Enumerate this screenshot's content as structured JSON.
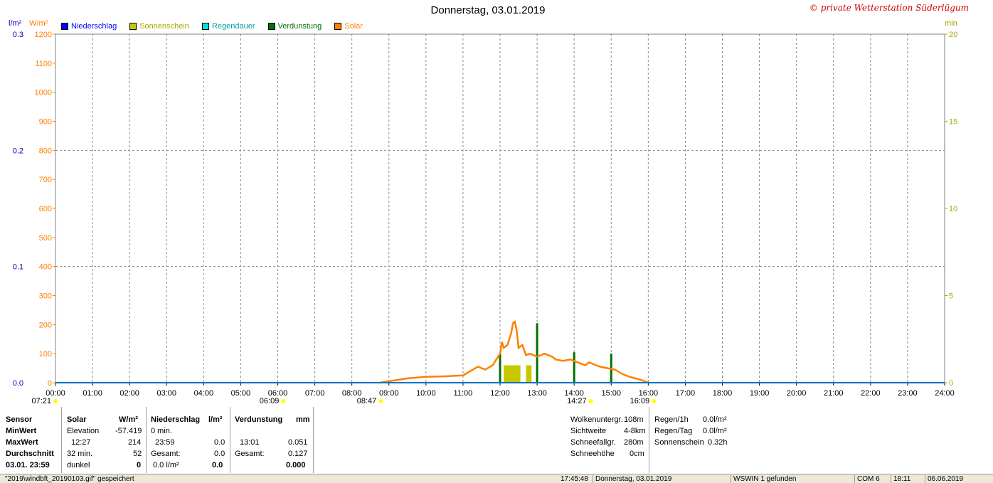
{
  "title": "Donnerstag, 03.01.2019",
  "copyright": "© private Wetterstation Süderlügum",
  "legend": [
    {
      "label": "Niederschlag",
      "color": "#0000ff"
    },
    {
      "label": "Sonnenschein",
      "color": "#c8c800"
    },
    {
      "label": "Regendauer",
      "color": "#00e0e0"
    },
    {
      "label": "Verdunstung",
      "color": "#007000"
    },
    {
      "label": "Solar",
      "color": "#ff8000"
    }
  ],
  "chart_data": {
    "type": "line",
    "title": "Donnerstag, 03.01.2019",
    "y_left_precip_unit": "l/m²",
    "y_left_solar_unit": "W/m²",
    "y_right_unit": "min",
    "y_precip_ticks": [
      "0.0",
      "0.1",
      "0.2",
      "0.3"
    ],
    "y_solar_ticks": [
      "0",
      "100",
      "200",
      "300",
      "400",
      "500",
      "600",
      "700",
      "800",
      "900",
      "1000",
      "1100",
      "1200"
    ],
    "y_right_ticks": [
      "0",
      "5",
      "10",
      "15",
      "20"
    ],
    "x_ticks": [
      "00:00",
      "01:00",
      "02:00",
      "03:00",
      "04:00",
      "05:00",
      "06:00",
      "07:00",
      "08:00",
      "09:00",
      "10:00",
      "11:00",
      "12:00",
      "13:00",
      "14:00",
      "15:00",
      "16:00",
      "17:00",
      "18:00",
      "19:00",
      "20:00",
      "21:00",
      "22:00",
      "23:00",
      "24:00"
    ],
    "solar_ylim": [
      0,
      1200
    ],
    "precip_ylim": [
      0,
      0.3
    ],
    "minutes_ylim": [
      0,
      20
    ],
    "grid": true,
    "series": [
      {
        "name": "Solar",
        "color": "#ff8000",
        "x": [
          8.75,
          9.0,
          9.5,
          10.0,
          10.5,
          11.0,
          11.2,
          11.4,
          11.6,
          11.8,
          12.0,
          12.05,
          12.1,
          12.2,
          12.3,
          12.35,
          12.4,
          12.45,
          12.5,
          12.6,
          12.7,
          12.8,
          12.9,
          13.0,
          13.2,
          13.4,
          13.5,
          13.7,
          13.9,
          14.1,
          14.3,
          14.4,
          14.5,
          14.7,
          14.9,
          15.1,
          15.3,
          15.5,
          15.8,
          16.0
        ],
        "y": [
          0,
          5,
          15,
          20,
          22,
          25,
          40,
          55,
          45,
          60,
          100,
          140,
          120,
          130,
          170,
          205,
          210,
          180,
          120,
          130,
          95,
          100,
          95,
          90,
          100,
          90,
          80,
          75,
          80,
          70,
          60,
          70,
          65,
          55,
          50,
          45,
          30,
          20,
          10,
          0
        ]
      },
      {
        "name": "Niederschlag",
        "color": "#0070c0",
        "x": [
          0,
          24
        ],
        "y": [
          0,
          0
        ]
      }
    ],
    "sunshine_blocks": [
      {
        "from": 12.1,
        "to": 12.55
      },
      {
        "from": 12.7,
        "to": 12.85
      }
    ],
    "evaporation_bars": [
      {
        "x": 12.0,
        "v": 100
      },
      {
        "x": 13.0,
        "v": 205
      },
      {
        "x": 14.0,
        "v": 105
      },
      {
        "x": 15.0,
        "v": 100
      }
    ],
    "markers": [
      {
        "label": "07:21",
        "x": 0.0
      },
      {
        "label": "06:09",
        "x": 6.15
      },
      {
        "label": "08:47",
        "x": 8.78
      },
      {
        "label": "14:27",
        "x": 14.45
      },
      {
        "label": "16:09",
        "x": 16.15
      }
    ]
  },
  "stats": {
    "sensor": {
      "header": "Sensor",
      "min": "MinWert",
      "max": "MaxWert",
      "avg": "Durchschnitt",
      "date": "03.01.  23:59"
    },
    "solar": {
      "header": "Solar",
      "unit": "W/m²",
      "r1a": "Elevation",
      "r1b": "-57.419",
      "r2a": "12:27",
      "r2b": "214",
      "r3a": "32 min.",
      "r3b": "52",
      "r4a": "dunkel",
      "r4b": "0"
    },
    "precip": {
      "header": "Niederschlag",
      "unit": "l/m²",
      "r1a": "0 min.",
      "r2a": "23:59",
      "r2b": "0.0",
      "r3a": "Gesamt:",
      "r3b": "0.0",
      "r4a": "0.0 l/m²",
      "r4b": "0.0"
    },
    "evap": {
      "header": "Verdunstung",
      "unit": "mm",
      "r2a": "13:01",
      "r2b": "0.051",
      "r3a": "Gesamt:",
      "r3b": "0.127",
      "r4b": "0.000"
    },
    "weather": [
      {
        "k": "Wolkenuntergr.",
        "v": "108m"
      },
      {
        "k": "Sichtweite",
        "v": "4-8km"
      },
      {
        "k": "Schneefallgr.",
        "v": "280m"
      },
      {
        "k": "Schneehöhe",
        "v": "0cm"
      }
    ],
    "rain": [
      {
        "k": "Regen/1h",
        "v": "0.0l/m²"
      },
      {
        "k": "Regen/Tag",
        "v": "0.0l/m²"
      },
      {
        "k": "Sonnenschein",
        "v": "0.32h"
      }
    ]
  },
  "statusbar": {
    "file": "\"2019\\windbft_20190103.gif\" gespeichert",
    "time": "17:45:48",
    "date": "Donnerstag, 03.01.2019",
    "wswin": "WSWIN 1 gefunden",
    "com": "COM 6",
    "clock": "18:11",
    "sysdate": "06.06.2019"
  }
}
